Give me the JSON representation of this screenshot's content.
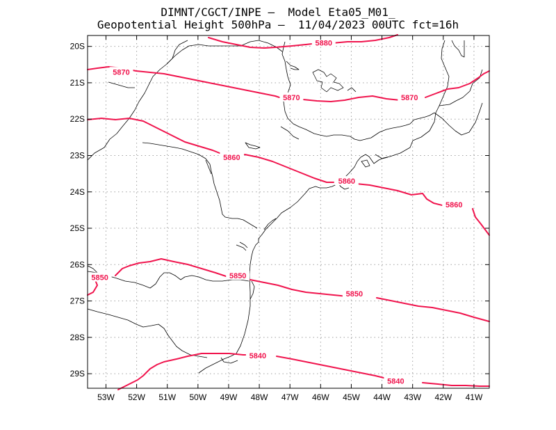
{
  "header": {
    "line1": "DIMNT/CGCT/INPE –  Model Eta05_M01_",
    "line2": "Geopotential Height 500hPa –  11/04/2023 00UTC fct=16h"
  },
  "map": {
    "projection": "lat-lon",
    "lon_range": [
      -53.6,
      -40.5
    ],
    "lat_range": [
      -29.4,
      -19.7
    ],
    "grid": true,
    "line_color": "#000000",
    "contour_color": "#f0144d",
    "x_tick_labels": [
      "53W",
      "52W",
      "51W",
      "50W",
      "49W",
      "48W",
      "47W",
      "46W",
      "45W",
      "44W",
      "43W",
      "42W",
      "41W"
    ],
    "y_tick_labels": [
      "20S",
      "21S",
      "22S",
      "23S",
      "24S",
      "25S",
      "26S",
      "27S",
      "28S",
      "29S"
    ]
  },
  "contours": [
    {
      "value": 5880,
      "label": "5880",
      "label_lonlat": [
        -45.9,
        -19.9
      ]
    },
    {
      "value": 5870,
      "label": "5870",
      "label_lonlat": [
        -52.5,
        -20.7
      ]
    },
    {
      "value": 5870,
      "label": "5870",
      "label_lonlat": [
        -46.95,
        -21.4
      ]
    },
    {
      "value": 5870,
      "label": "5870",
      "label_lonlat": [
        -43.1,
        -21.4
      ]
    },
    {
      "value": 5860,
      "label": "5860",
      "label_lonlat": [
        -48.9,
        -23.05
      ]
    },
    {
      "value": 5860,
      "label": "5860",
      "label_lonlat": [
        -45.15,
        -23.7
      ]
    },
    {
      "value": 5860,
      "label": "5860",
      "label_lonlat": [
        -41.65,
        -24.35
      ]
    },
    {
      "value": 5850,
      "label": "5850",
      "label_lonlat": [
        -53.2,
        -26.35
      ]
    },
    {
      "value": 5850,
      "label": "5850",
      "label_lonlat": [
        -48.7,
        -26.3
      ]
    },
    {
      "value": 5850,
      "label": "5850",
      "label_lonlat": [
        -44.9,
        -26.8
      ]
    },
    {
      "value": 5840,
      "label": "5840",
      "label_lonlat": [
        -48.05,
        -28.5
      ]
    },
    {
      "value": 5840,
      "label": "5840",
      "label_lonlat": [
        -43.55,
        -29.2
      ]
    }
  ]
}
